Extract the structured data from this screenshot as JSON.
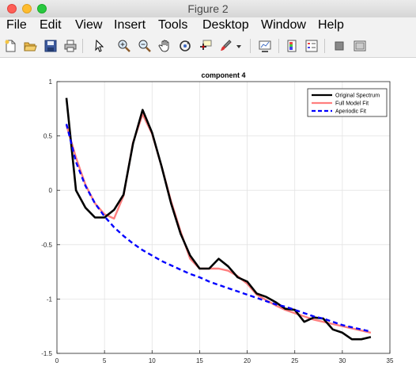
{
  "window": {
    "title": "Figure 2"
  },
  "menu": [
    "File",
    "Edit",
    "View",
    "Insert",
    "Tools",
    "Desktop",
    "Window",
    "Help"
  ],
  "toolbar": {
    "icons": [
      "new-figure-icon",
      "open-file-icon",
      "save-icon",
      "print-icon",
      "pointer-icon",
      "zoom-in-icon",
      "zoom-out-icon",
      "pan-hand-icon",
      "rotate-3d-icon",
      "data-cursor-icon",
      "brush-icon",
      "brush-dropdown-icon",
      "link-plot-icon",
      "colorbar-icon",
      "legend-icon",
      "hide-plot-tools-icon",
      "show-plot-tools-icon"
    ]
  },
  "chart_data": {
    "type": "line",
    "title": "component 4",
    "xlabel": "",
    "ylabel": "",
    "xlim": [
      0,
      35
    ],
    "ylim": [
      -1.5,
      1
    ],
    "xticks": [
      0,
      5,
      10,
      15,
      20,
      25,
      30,
      35
    ],
    "yticks": [
      -1.5,
      -1,
      -0.5,
      0,
      0.5,
      1
    ],
    "grid": true,
    "legend_position": "top-right",
    "series": [
      {
        "name": "Original Spectrum",
        "color": "#000000",
        "style": "solid",
        "x": [
          1,
          2,
          3,
          4,
          5,
          6,
          7,
          8,
          9,
          10,
          11,
          12,
          13,
          14,
          15,
          16,
          17,
          18,
          19,
          20,
          21,
          22,
          23,
          24,
          25,
          26,
          27,
          28,
          29,
          30,
          31,
          32,
          33
        ],
        "y": [
          0.85,
          0,
          -0.16,
          -0.25,
          -0.25,
          -0.18,
          -0.04,
          0.43,
          0.74,
          0.53,
          0.22,
          -0.12,
          -0.4,
          -0.6,
          -0.72,
          -0.72,
          -0.63,
          -0.7,
          -0.8,
          -0.84,
          -0.95,
          -0.98,
          -1.03,
          -1.09,
          -1.1,
          -1.21,
          -1.17,
          -1.18,
          -1.28,
          -1.31,
          -1.37,
          -1.37,
          -1.35
        ]
      },
      {
        "name": "Full Model Fit",
        "color": "#ff7f7f",
        "style": "solid",
        "x": [
          1,
          2,
          3,
          4,
          5,
          6,
          7,
          8,
          9,
          10,
          11,
          12,
          13,
          14,
          15,
          16,
          17,
          18,
          19,
          20,
          21,
          22,
          23,
          24,
          25,
          26,
          27,
          28,
          29,
          30,
          31,
          32,
          33
        ],
        "y": [
          0.6,
          0.3,
          0.05,
          -0.12,
          -0.22,
          -0.26,
          -0.05,
          0.44,
          0.7,
          0.52,
          0.22,
          -0.1,
          -0.38,
          -0.63,
          -0.72,
          -0.72,
          -0.72,
          -0.74,
          -0.79,
          -0.86,
          -0.96,
          -1.01,
          -1.06,
          -1.1,
          -1.13,
          -1.16,
          -1.19,
          -1.21,
          -1.23,
          -1.25,
          -1.27,
          -1.29,
          -1.31
        ]
      },
      {
        "name": "Aperiodic Fit",
        "color": "#0000ff",
        "style": "dashed",
        "x": [
          1,
          2,
          3,
          4,
          5,
          6,
          7,
          8,
          9,
          10,
          11,
          12,
          13,
          14,
          15,
          16,
          17,
          18,
          19,
          20,
          21,
          22,
          23,
          24,
          25,
          26,
          27,
          28,
          29,
          30,
          31,
          32,
          33
        ],
        "y": [
          0.61,
          0.26,
          0.04,
          -0.12,
          -0.24,
          -0.34,
          -0.42,
          -0.49,
          -0.55,
          -0.6,
          -0.65,
          -0.69,
          -0.73,
          -0.77,
          -0.8,
          -0.84,
          -0.87,
          -0.9,
          -0.93,
          -0.96,
          -0.99,
          -1.02,
          -1.05,
          -1.07,
          -1.1,
          -1.13,
          -1.16,
          -1.18,
          -1.21,
          -1.24,
          -1.26,
          -1.28,
          -1.3
        ]
      }
    ]
  }
}
